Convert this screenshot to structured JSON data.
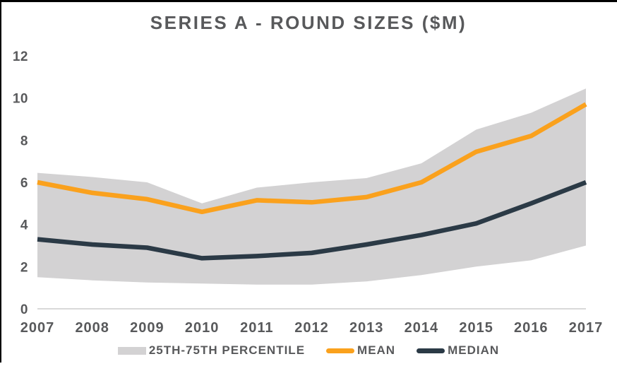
{
  "chart_data": {
    "type": "area",
    "title": "SERIES A - ROUND SIZES ($M)",
    "xlabel": "",
    "ylabel": "",
    "x": [
      "2007",
      "2008",
      "2009",
      "2010",
      "2011",
      "2012",
      "2013",
      "2014",
      "2015",
      "2016",
      "2017"
    ],
    "ylim": [
      0,
      12
    ],
    "y_ticks": [
      0,
      2,
      4,
      6,
      8,
      10,
      12
    ],
    "grid": false,
    "legend_position": "bottom",
    "band": {
      "name": "25TH-75TH PERCENTILE",
      "upper_75th": [
        6.45,
        6.25,
        6.0,
        5.0,
        5.75,
        6.0,
        6.2,
        6.9,
        8.5,
        9.3,
        10.45
      ],
      "lower_25th": [
        1.5,
        1.35,
        1.25,
        1.2,
        1.15,
        1.15,
        1.3,
        1.6,
        2.0,
        2.3,
        3.0
      ],
      "color": "#d3d2d3"
    },
    "series": [
      {
        "name": "MEAN",
        "values": [
          6.0,
          5.5,
          5.2,
          4.6,
          5.15,
          5.05,
          5.3,
          6.0,
          7.45,
          8.2,
          9.7
        ],
        "color": "#faa11d"
      },
      {
        "name": "MEDIAN",
        "values": [
          3.3,
          3.05,
          2.9,
          2.4,
          2.5,
          2.65,
          3.05,
          3.5,
          4.05,
          5.0,
          6.0
        ],
        "color": "#2b3a46"
      }
    ]
  },
  "styles": {
    "text_color": "#58595b",
    "axis_line_color": "#d9d9d9",
    "background": "#ffffff",
    "frame_border_color": "#000000"
  }
}
